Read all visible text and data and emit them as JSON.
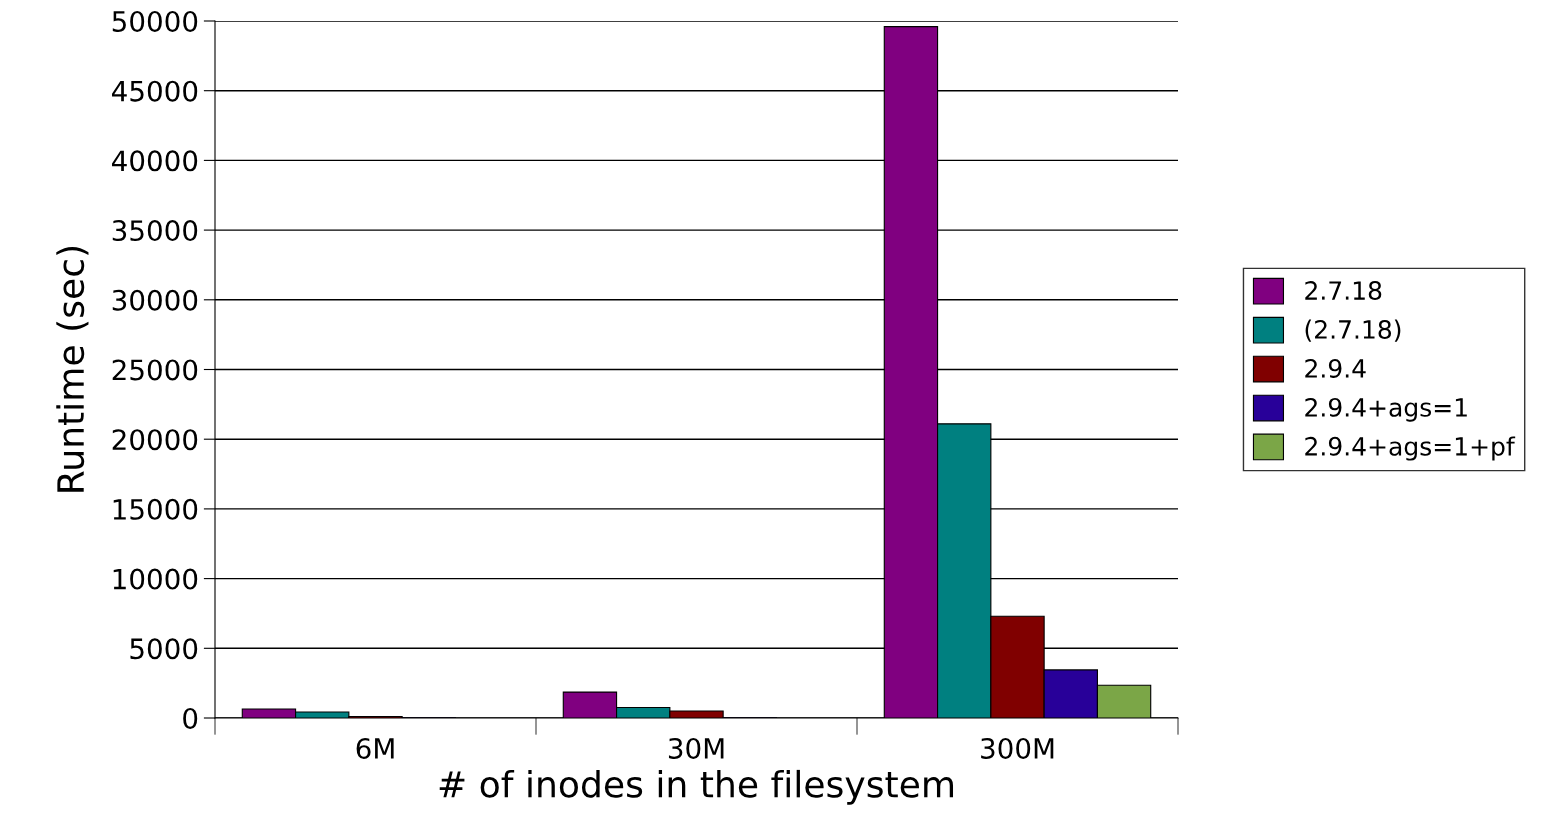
{
  "chart_data": {
    "type": "bar",
    "xlabel": "# of inodes in the filesystem",
    "ylabel": "Runtime (sec)",
    "categories": [
      "6M",
      "30M",
      "300M"
    ],
    "series": [
      {
        "name": "2.7.18",
        "color": "#800080",
        "values": [
          650,
          1860,
          49600
        ]
      },
      {
        "name": "(2.7.18)",
        "color": "#008080",
        "values": [
          430,
          750,
          21100
        ]
      },
      {
        "name": "2.9.4",
        "color": "#800000",
        "values": [
          110,
          500,
          7300
        ]
      },
      {
        "name": "2.9.4+ags=1",
        "color": "#280099",
        "values": [
          20,
          20,
          3450
        ]
      },
      {
        "name": "2.9.4+ags=1+pf",
        "color": "#7ba647",
        "values": [
          null,
          null,
          2350
        ]
      }
    ],
    "ylim": [
      0,
      50000
    ],
    "yticks": [
      0,
      5000,
      10000,
      15000,
      20000,
      25000,
      30000,
      35000,
      40000,
      45000,
      50000
    ],
    "grid": "y",
    "legend": "right"
  }
}
